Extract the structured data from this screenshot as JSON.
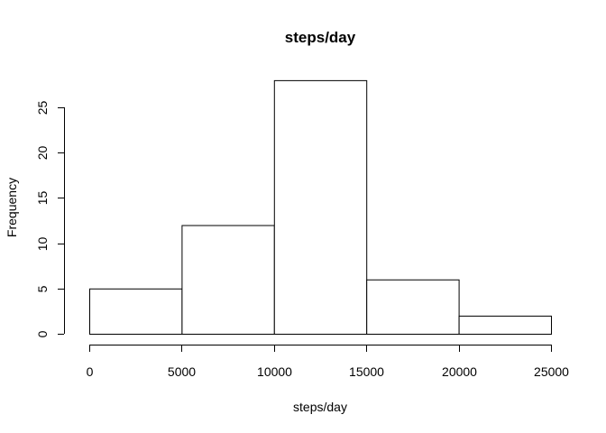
{
  "chart_data": {
    "type": "bar",
    "title": "steps/day",
    "xlabel": "steps/day",
    "ylabel": "Frequency",
    "bins": [
      {
        "from": 0,
        "to": 5000,
        "count": 5
      },
      {
        "from": 5000,
        "to": 10000,
        "count": 12
      },
      {
        "from": 10000,
        "to": 15000,
        "count": 28
      },
      {
        "from": 15000,
        "to": 20000,
        "count": 6
      },
      {
        "from": 20000,
        "to": 25000,
        "count": 2
      }
    ],
    "xlim": [
      0,
      25000
    ],
    "ylim": [
      0,
      28
    ],
    "x_ticks": [
      0,
      5000,
      10000,
      15000,
      20000,
      25000
    ],
    "y_ticks": [
      0,
      5,
      10,
      15,
      20,
      25
    ],
    "grid": false,
    "bar_fill": "#ffffff",
    "bar_stroke": "#000000"
  }
}
